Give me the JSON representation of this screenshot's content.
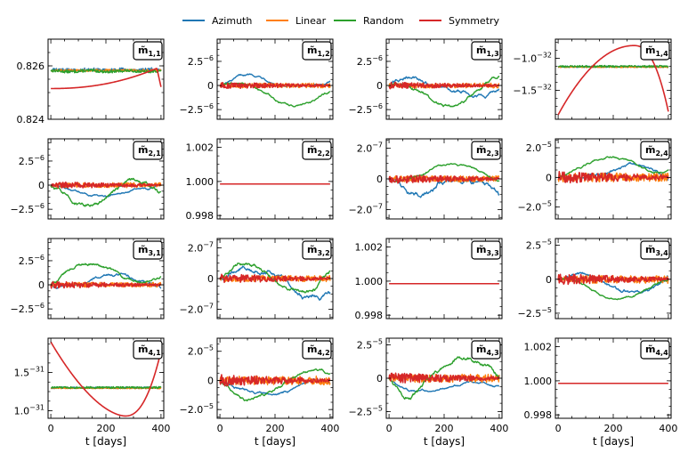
{
  "legend": [
    {
      "name": "Azimuth",
      "color": "#1f77b4"
    },
    {
      "name": "Linear",
      "color": "#ff7f0e"
    },
    {
      "name": "Random",
      "color": "#2ca02c"
    },
    {
      "name": "Symmetry",
      "color": "#d62728"
    }
  ],
  "chart_data": {
    "type": "line",
    "xlabel": "t [days]",
    "xlim": [
      -10,
      410
    ],
    "xticks": [
      "0",
      "200",
      "400"
    ],
    "x_tick_values": [
      0,
      200,
      400
    ],
    "series_names": [
      "Azimuth",
      "Linear",
      "Random",
      "Symmetry"
    ],
    "panels": [
      {
        "id": "m11",
        "label_base": "m̃",
        "label_sub": "1,1",
        "ylim": [
          0.824,
          0.827
        ],
        "yticks": [
          {
            "v": 0.824,
            "t": "0.824"
          },
          {
            "v": 0.826,
            "t": "0.826"
          }
        ],
        "kind": "m11"
      },
      {
        "id": "m12",
        "label_base": "m̃",
        "label_sub": "1,2",
        "ylim": [
          -3.5,
          4.8
        ],
        "yticks": [
          {
            "v": -2.5,
            "t": "−2.5",
            "e": "−6"
          },
          {
            "v": 0,
            "t": "0"
          },
          {
            "v": 2.5,
            "t": "2.5",
            "e": "−6"
          }
        ],
        "kind": "noise",
        "amp": [
          1.2,
          0.25,
          2.2,
          0.35
        ]
      },
      {
        "id": "m13",
        "label_base": "m̃",
        "label_sub": "1,3",
        "ylim": [
          -3.5,
          4.8
        ],
        "yticks": [
          {
            "v": -2.5,
            "t": "−2.5",
            "e": "−6"
          },
          {
            "v": 0,
            "t": "0"
          },
          {
            "v": 2.5,
            "t": "2.5",
            "e": "−6"
          }
        ],
        "kind": "noise",
        "amp": [
          1.3,
          0.25,
          2.2,
          0.35
        ]
      },
      {
        "id": "m14",
        "label_base": "m̃",
        "label_sub": "1,4",
        "ylim": [
          -1.95,
          -0.7
        ],
        "yticks": [
          {
            "v": -1.5,
            "t": "−1.5",
            "e": "−32"
          },
          {
            "v": -1.0,
            "t": "−1.0",
            "e": "−32"
          }
        ],
        "kind": "hump",
        "flat": -1.13,
        "low": -1.88,
        "high": -0.8
      },
      {
        "id": "m21",
        "label_base": "m̃",
        "label_sub": "2,1",
        "ylim": [
          -3.5,
          4.8
        ],
        "yticks": [
          {
            "v": -2.5,
            "t": "−2.5",
            "e": "−6"
          },
          {
            "v": 0,
            "t": "0"
          },
          {
            "v": 2.5,
            "t": "2.5",
            "e": "−6"
          }
        ],
        "kind": "noise",
        "amp": [
          1.2,
          0.25,
          2.2,
          0.35
        ]
      },
      {
        "id": "m22",
        "label_base": "m̃",
        "label_sub": "2,2",
        "ylim": [
          0.9978,
          1.0025
        ],
        "yticks": [
          {
            "v": 0.998,
            "t": "0.998"
          },
          {
            "v": 1.0,
            "t": "1.000"
          },
          {
            "v": 1.002,
            "t": "1.002"
          }
        ],
        "kind": "const",
        "val": 0.99985
      },
      {
        "id": "m23",
        "label_base": "m̃",
        "label_sub": "2,3",
        "ylim": [
          -2.6,
          2.6
        ],
        "yticks": [
          {
            "v": -2.0,
            "t": "−2.0",
            "e": "−7"
          },
          {
            "v": 0,
            "t": "0"
          },
          {
            "v": 2.0,
            "t": "2.0",
            "e": "−7"
          }
        ],
        "kind": "noise",
        "amp": [
          1.2,
          0.2,
          1.0,
          0.3
        ]
      },
      {
        "id": "m24",
        "label_base": "m̃",
        "label_sub": "2,4",
        "ylim": [
          -2.8,
          2.6
        ],
        "yticks": [
          {
            "v": -2.0,
            "t": "−2.0",
            "e": "−5"
          },
          {
            "v": 0,
            "t": "0"
          },
          {
            "v": 2.0,
            "t": "2.0",
            "e": "−5"
          }
        ],
        "kind": "noise",
        "amp": [
          1.0,
          0.3,
          1.4,
          0.4
        ]
      },
      {
        "id": "m31",
        "label_base": "m̃",
        "label_sub": "3,1",
        "ylim": [
          -3.5,
          4.8
        ],
        "yticks": [
          {
            "v": -2.5,
            "t": "−2.5",
            "e": "−6"
          },
          {
            "v": 0,
            "t": "0"
          },
          {
            "v": 2.5,
            "t": "2.5",
            "e": "−6"
          }
        ],
        "kind": "noise",
        "amp": [
          1.2,
          0.25,
          2.2,
          0.35
        ]
      },
      {
        "id": "m32",
        "label_base": "m̃",
        "label_sub": "3,2",
        "ylim": [
          -2.6,
          2.6
        ],
        "yticks": [
          {
            "v": -2.0,
            "t": "−2.0",
            "e": "−7"
          },
          {
            "v": 0,
            "t": "0"
          },
          {
            "v": 2.0,
            "t": "2.0",
            "e": "−7"
          }
        ],
        "kind": "noise",
        "amp": [
          1.4,
          0.2,
          1.0,
          0.3
        ]
      },
      {
        "id": "m33",
        "label_base": "m̃",
        "label_sub": "3,3",
        "ylim": [
          0.9978,
          1.0025
        ],
        "yticks": [
          {
            "v": 0.998,
            "t": "0.998"
          },
          {
            "v": 1.0,
            "t": "1.000"
          },
          {
            "v": 1.002,
            "t": "1.002"
          }
        ],
        "kind": "const",
        "val": 0.99985
      },
      {
        "id": "m34",
        "label_base": "m̃",
        "label_sub": "3,4",
        "ylim": [
          -2.9,
          3.0
        ],
        "yticks": [
          {
            "v": -2.5,
            "t": "−2.5",
            "e": "−5"
          },
          {
            "v": 0,
            "t": "0"
          },
          {
            "v": 2.5,
            "t": "2.5",
            "e": "−5"
          }
        ],
        "kind": "noise",
        "amp": [
          1.0,
          0.3,
          1.5,
          0.4
        ]
      },
      {
        "id": "m41",
        "label_base": "m̃",
        "label_sub": "4,1",
        "ylim": [
          0.9,
          1.95
        ],
        "yticks": [
          {
            "v": 1.0,
            "t": "1.0",
            "e": "−31"
          },
          {
            "v": 1.5,
            "t": "1.5",
            "e": "−31"
          }
        ],
        "kind": "dip",
        "flat": 1.3,
        "high": 1.9,
        "low": 0.93
      },
      {
        "id": "m42",
        "label_base": "m̃",
        "label_sub": "4,2",
        "ylim": [
          -2.6,
          2.9
        ],
        "yticks": [
          {
            "v": -2.0,
            "t": "−2.0",
            "e": "−5"
          },
          {
            "v": 0,
            "t": "0"
          },
          {
            "v": 2.0,
            "t": "2.0",
            "e": "−5"
          }
        ],
        "kind": "noise",
        "amp": [
          1.0,
          0.3,
          1.4,
          0.4
        ]
      },
      {
        "id": "m43",
        "label_base": "m̃",
        "label_sub": "4,3",
        "ylim": [
          -3.0,
          3.0
        ],
        "yticks": [
          {
            "v": -2.5,
            "t": "−2.5",
            "e": "−5"
          },
          {
            "v": 0,
            "t": "0"
          },
          {
            "v": 2.5,
            "t": "2.5",
            "e": "−5"
          }
        ],
        "kind": "noise",
        "amp": [
          1.0,
          0.3,
          1.6,
          0.4
        ]
      },
      {
        "id": "m44",
        "label_base": "m̃",
        "label_sub": "4,4",
        "ylim": [
          0.9978,
          1.0025
        ],
        "yticks": [
          {
            "v": 0.998,
            "t": "0.998"
          },
          {
            "v": 1.0,
            "t": "1.000"
          },
          {
            "v": 1.002,
            "t": "1.002"
          }
        ],
        "kind": "const",
        "val": 0.99985
      }
    ]
  }
}
